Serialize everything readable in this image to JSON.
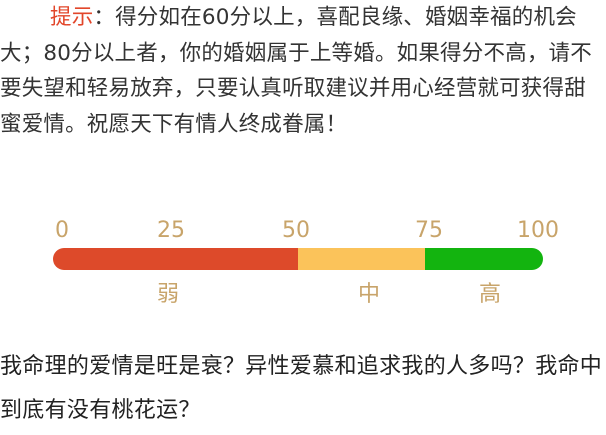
{
  "tip": {
    "label": "提示",
    "text": "：得分如在60分以上，喜配良缘、婚姻幸福的机会大；80分以上者，你的婚姻属于上等婚。如果得分不高，请不要失望和轻易放弃，只要认真听取建议并用心经营就可获得甜蜜爱情。祝愿天下有情人终成眷属！"
  },
  "scale": {
    "ticks": [
      "0",
      "25",
      "50",
      "75",
      "100"
    ],
    "segments": [
      {
        "label": "弱",
        "from": 0,
        "to": 50,
        "color": "#dd4a2a"
      },
      {
        "label": "中",
        "from": 50,
        "to": 76,
        "color": "#fbc35a"
      },
      {
        "label": "高",
        "from": 76,
        "to": 100,
        "color": "#13b40f"
      }
    ]
  },
  "question": {
    "text": "我命理的爱情是旺是衰？异性爱慕和追求我的人多吗？我命中到底有没有桃花运？"
  }
}
